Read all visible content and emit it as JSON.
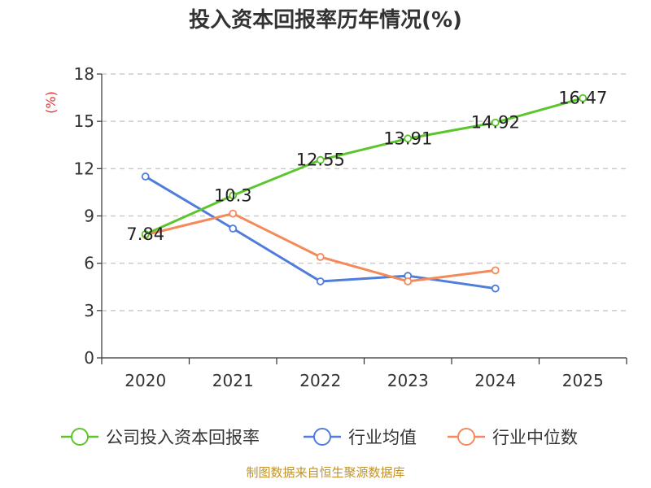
{
  "chart_data": {
    "type": "line",
    "title": "投入资本回报率历年情况(%)",
    "ylabel": "(%)",
    "categories": [
      "2020",
      "2021",
      "2022",
      "2023",
      "2024",
      "2025"
    ],
    "ylim": [
      0,
      18
    ],
    "yticks": [
      0,
      3,
      6,
      9,
      12,
      15,
      18
    ],
    "grid": true,
    "legend_position": "bottom",
    "series": [
      {
        "name": "公司投入资本回报率",
        "color": "#5cc52e",
        "values": [
          7.84,
          10.3,
          12.55,
          13.91,
          14.92,
          16.47
        ],
        "labels": [
          "7.84",
          "10.3",
          "12.55",
          "13.91",
          "14.92",
          "16.47"
        ]
      },
      {
        "name": "行业均值",
        "color": "#4f7ddb",
        "values": [
          11.5,
          8.2,
          4.85,
          5.2,
          4.4,
          null
        ]
      },
      {
        "name": "行业中位数",
        "color": "#f4895a",
        "values": [
          7.8,
          9.15,
          6.4,
          4.85,
          5.55,
          null
        ]
      }
    ]
  },
  "source": "制图数据来自恒生聚源数据库"
}
